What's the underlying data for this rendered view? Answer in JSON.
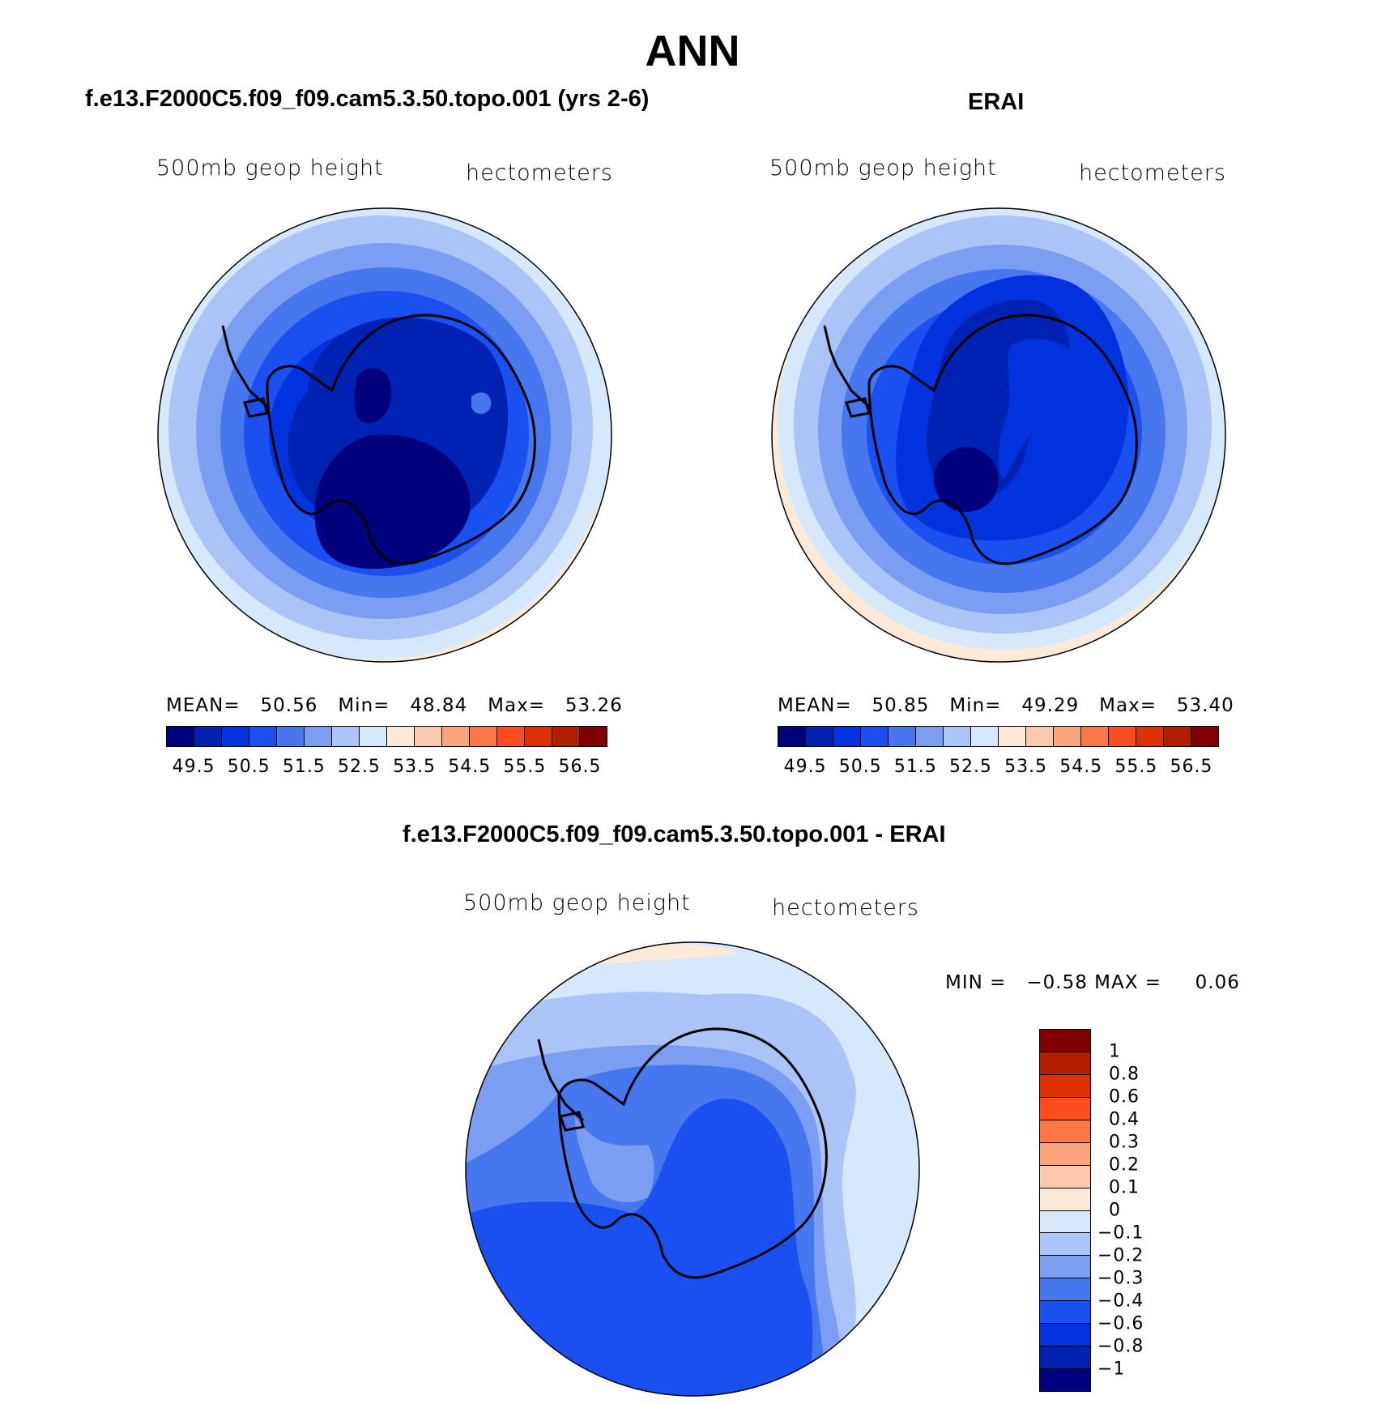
{
  "title": "ANN",
  "colors": {
    "scale": [
      "#00007f",
      "#0022b3",
      "#0033dd",
      "#1a4ff0",
      "#4777ee",
      "#7b9ef2",
      "#aac4f7",
      "#d6e8fb",
      "#fde9d8",
      "#fcc9ad",
      "#fca47c",
      "#fb7846",
      "#fb4d1e",
      "#dd3104",
      "#b11e00",
      "#7f0000"
    ],
    "land_outline": "#000000"
  },
  "chart_data": [
    {
      "type": "polar-contour-map",
      "name": "model",
      "title": "f.e13.F2000C5.f09_f09.cam5.3.50.topo.001 (yrs 2-6)",
      "variable": "500mb geop height",
      "units": "hectometers",
      "stats": {
        "mean_label": "MEAN=",
        "mean": "50.56",
        "min_label": "Min=",
        "min": "48.84",
        "max_label": "Max=",
        "max": "53.26"
      },
      "contour_levels": [
        "49.5",
        "50.5",
        "51.5",
        "52.5",
        "53.5",
        "54.5",
        "55.5",
        "56.5"
      ],
      "mean_value": 50.56,
      "min_value": 48.84,
      "max_value": 53.26
    },
    {
      "type": "polar-contour-map",
      "name": "obs",
      "title": "ERAI",
      "variable": "500mb geop height",
      "units": "hectometers",
      "stats": {
        "mean_label": "MEAN=",
        "mean": "50.85",
        "min_label": "Min=",
        "min": "49.29",
        "max_label": "Max=",
        "max": "53.40"
      },
      "contour_levels": [
        "49.5",
        "50.5",
        "51.5",
        "52.5",
        "53.5",
        "54.5",
        "55.5",
        "56.5"
      ],
      "mean_value": 50.85,
      "min_value": 49.29,
      "max_value": 53.4
    },
    {
      "type": "polar-contour-map",
      "name": "difference",
      "title": "f.e13.F2000C5.f09_f09.cam5.3.50.topo.001 - ERAI",
      "variable": "500mb geop height",
      "units": "hectometers",
      "stats": {
        "min_label": "MIN =",
        "min": "−0.58",
        "max_label": "MAX =",
        "max": "0.06"
      },
      "contour_levels": [
        "1",
        "0.8",
        "0.6",
        "0.4",
        "0.3",
        "0.2",
        "0.1",
        "0",
        "−0.1",
        "−0.2",
        "−0.3",
        "−0.4",
        "−0.6",
        "−0.8",
        "−1"
      ],
      "min_value": -0.58,
      "max_value": 0.06
    }
  ]
}
